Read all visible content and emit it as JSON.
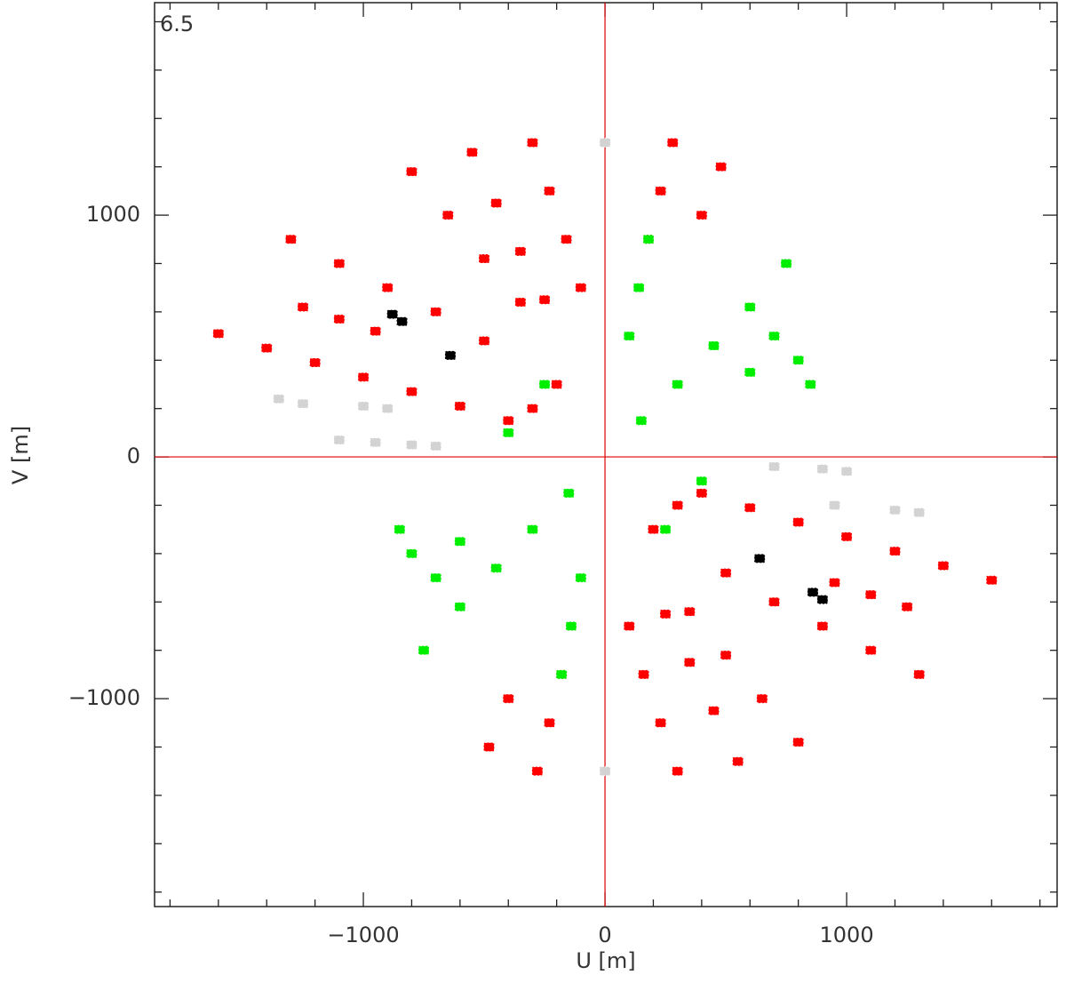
{
  "chart_data": {
    "type": "scatter",
    "annotation": "6.5",
    "xlabel": "U [m]",
    "ylabel": "V [m]",
    "xlim": [
      -1864,
      1871
    ],
    "ylim": [
      -1860,
      1879
    ],
    "xticks": [
      {
        "value": -1000,
        "label": "−1000"
      },
      0,
      1000
    ],
    "yticks": [
      {
        "value": -1000,
        "label": "−1000"
      },
      0,
      1000
    ],
    "xminorticks": [
      -1800,
      -1600,
      -1400,
      -1200,
      -800,
      -600,
      -400,
      -200,
      200,
      400,
      600,
      800,
      1200,
      1400,
      1600,
      1800
    ],
    "yminorticks": [
      -1800,
      -1600,
      -1400,
      -1200,
      -800,
      -600,
      -400,
      -200,
      200,
      400,
      600,
      800,
      1200,
      1400,
      1600,
      1800
    ],
    "zero_lines_color": "#e00000",
    "series": [
      {
        "color": "#ff0000",
        "x": [
          -1600,
          -1400,
          -1200,
          -1000,
          -800,
          -600,
          -400,
          1600,
          1400,
          1200,
          1000,
          800,
          600,
          400,
          -1300,
          -1100,
          -900,
          -700,
          -500,
          1300,
          1100,
          900,
          700,
          500,
          -800,
          -650,
          -500,
          -350,
          800,
          650,
          500,
          350,
          -550,
          -450,
          -350,
          -250,
          550,
          450,
          350,
          250,
          -300,
          -230,
          -160,
          -100,
          300,
          230,
          160,
          100,
          280,
          230,
          180,
          -280,
          -230,
          -180,
          480,
          400,
          -480,
          -400,
          -1250,
          -1100,
          -950,
          1250,
          1100,
          950,
          -200,
          -300,
          200,
          300
        ],
        "y": [
          510,
          450,
          390,
          330,
          270,
          210,
          150,
          -510,
          -450,
          -390,
          -330,
          -270,
          -210,
          -150,
          900,
          800,
          700,
          600,
          480,
          -900,
          -800,
          -700,
          -600,
          -480,
          1180,
          1000,
          820,
          640,
          -1180,
          -1000,
          -820,
          -640,
          1260,
          1050,
          850,
          650,
          -1260,
          -1050,
          -850,
          -650,
          1300,
          1100,
          900,
          700,
          -1300,
          -1100,
          -900,
          -700,
          1300,
          1100,
          900,
          -1300,
          -1100,
          -900,
          1200,
          1000,
          -1200,
          -1000,
          620,
          570,
          520,
          -620,
          -570,
          -520,
          300,
          200,
          -300,
          -200
        ]
      },
      {
        "color": "#d3d3d3",
        "x": [
          -1350,
          -1250,
          -1000,
          -900,
          -1100,
          -950,
          -800,
          -700,
          700,
          900,
          1000,
          950,
          1200,
          1300,
          0,
          0
        ],
        "y": [
          240,
          220,
          210,
          200,
          70,
          60,
          50,
          45,
          -40,
          -50,
          -60,
          -200,
          -220,
          -230,
          1300,
          -1300
        ]
      },
      {
        "color": "#00ee00",
        "x": [
          750,
          600,
          450,
          300,
          150,
          -750,
          -600,
          -450,
          -300,
          -150,
          180,
          140,
          100,
          -180,
          -140,
          -100,
          700,
          800,
          600,
          850,
          -700,
          -800,
          -600,
          -850,
          -250,
          -400,
          250,
          400
        ],
        "y": [
          800,
          620,
          460,
          300,
          150,
          -800,
          -620,
          -460,
          -300,
          -150,
          900,
          700,
          500,
          -900,
          -700,
          -500,
          500,
          400,
          350,
          300,
          -500,
          -400,
          -350,
          -300,
          300,
          100,
          -300,
          -100
        ]
      },
      {
        "color": "#000000",
        "x": [
          -880,
          -840,
          -640,
          640,
          860,
          900
        ],
        "y": [
          590,
          560,
          420,
          -420,
          -560,
          -590
        ]
      }
    ]
  }
}
